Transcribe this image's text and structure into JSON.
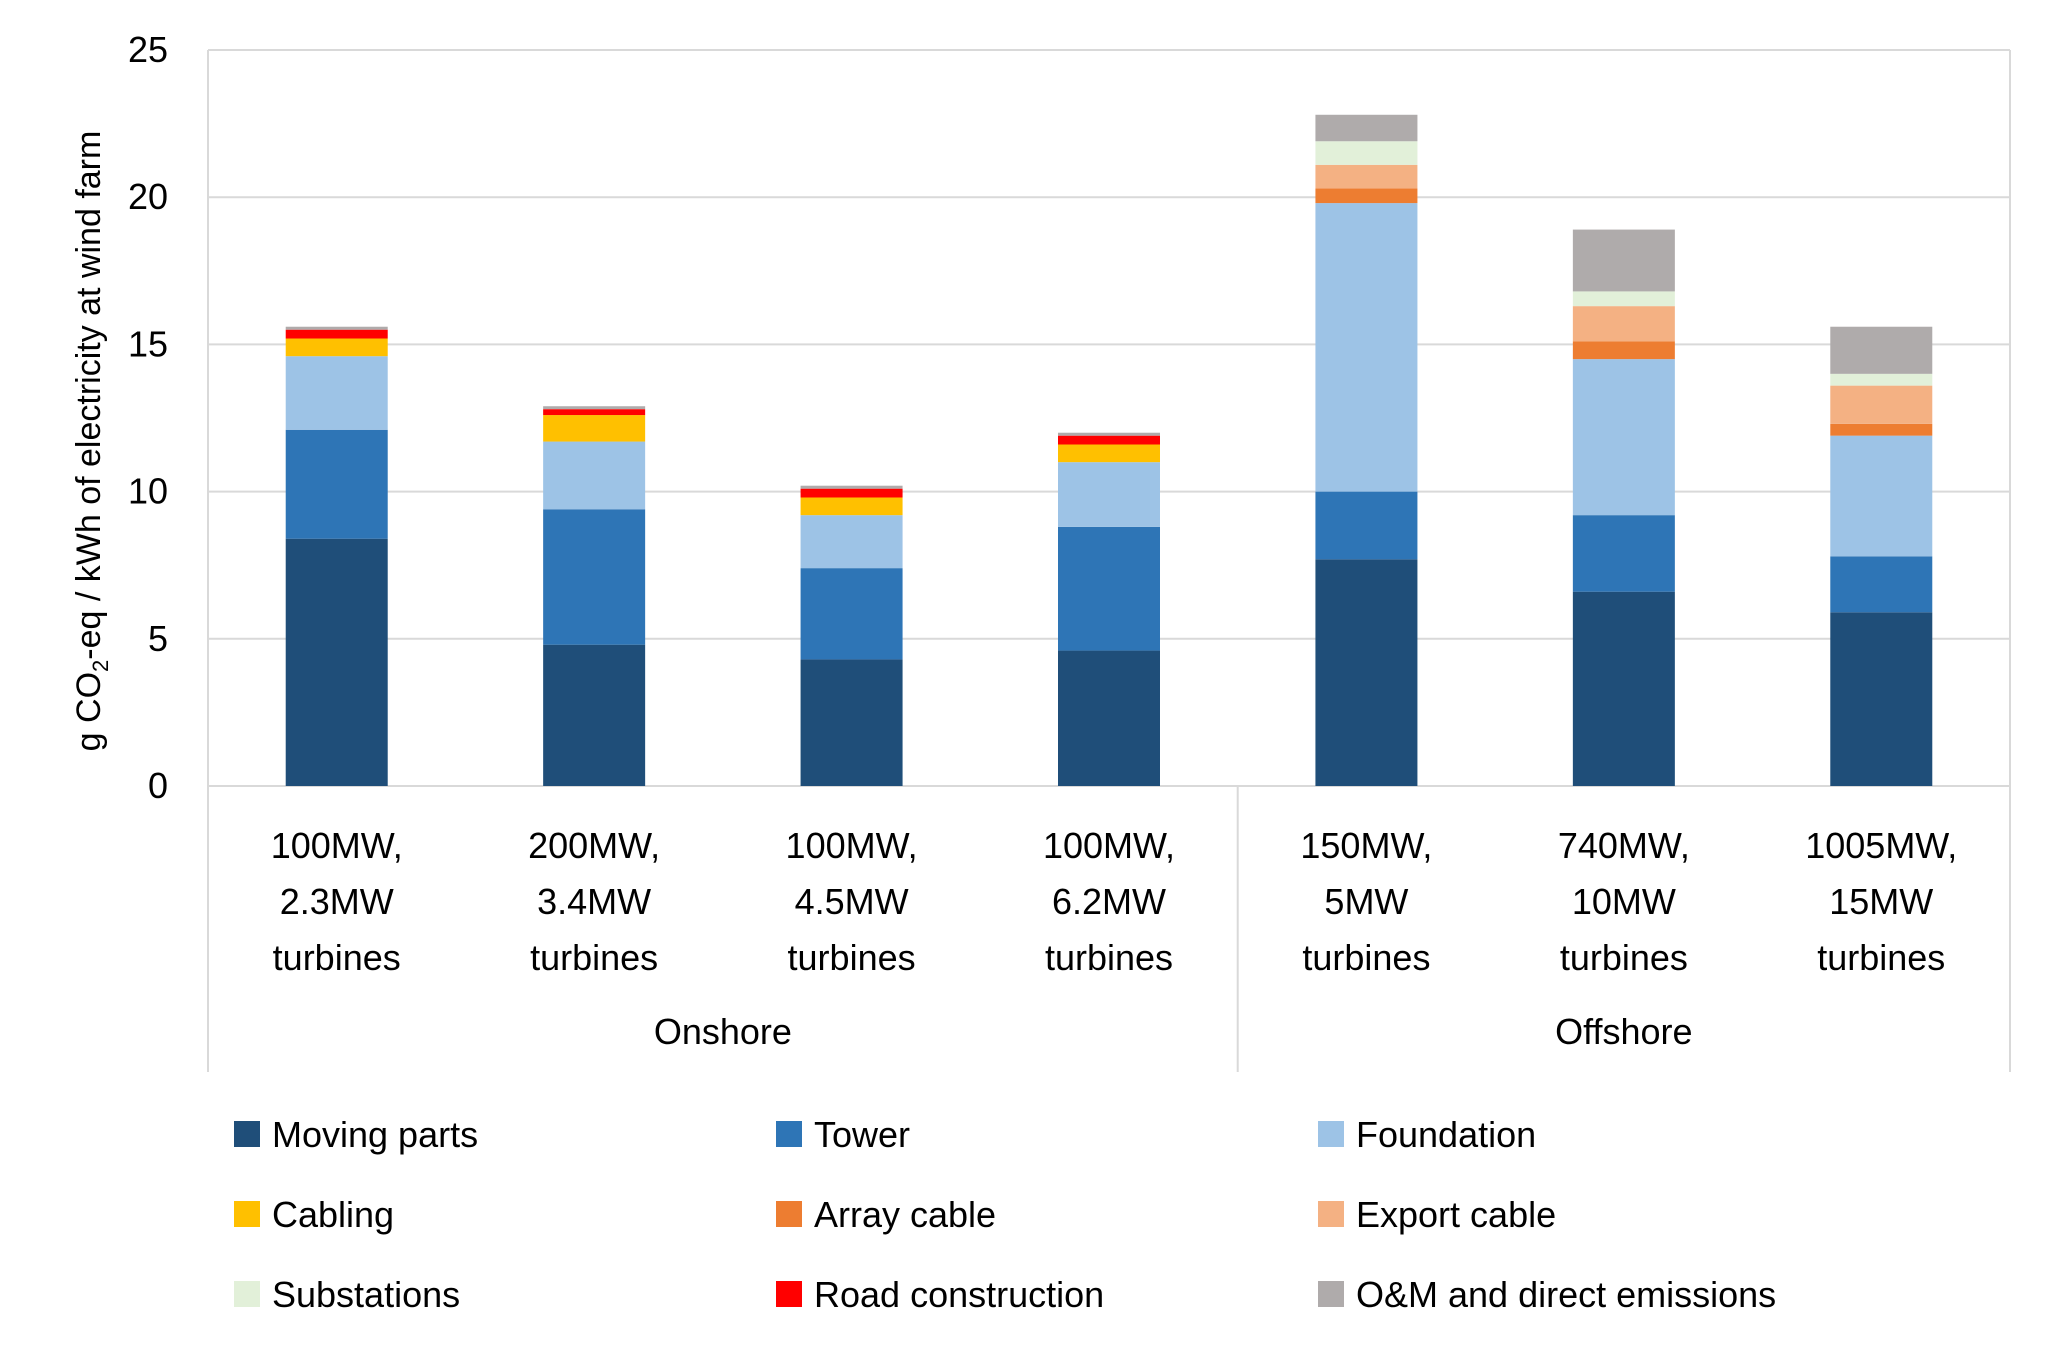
{
  "chart_data": {
    "type": "bar",
    "stacked": true,
    "title": "",
    "xlabel": "",
    "ylabel_parts": {
      "pre": "g CO",
      "sub": "2",
      "post": "-eq / kWh of electricity at wind farm"
    },
    "ylim": [
      0,
      25
    ],
    "yticks": [
      0,
      5,
      10,
      15,
      20,
      25
    ],
    "grid": true,
    "categories": [
      [
        "100MW,",
        "2.3MW",
        "turbines"
      ],
      [
        "200MW,",
        "3.4MW",
        "turbines"
      ],
      [
        "100MW,",
        "4.5MW",
        "turbines"
      ],
      [
        "100MW,",
        "6.2MW",
        "turbines"
      ],
      [
        "150MW,",
        "5MW",
        "turbines"
      ],
      [
        "740MW,",
        "10MW",
        "turbines"
      ],
      [
        "1005MW,",
        "15MW",
        "turbines"
      ]
    ],
    "groups": [
      {
        "label": "Onshore",
        "start": 0,
        "end": 3
      },
      {
        "label": "Offshore",
        "start": 4,
        "end": 6
      }
    ],
    "series": [
      {
        "name": "Moving parts",
        "color": "#1F4E79",
        "values": [
          8.4,
          4.8,
          4.3,
          4.6,
          7.7,
          6.6,
          5.9
        ]
      },
      {
        "name": "Tower",
        "color": "#2E75B6",
        "values": [
          3.7,
          4.6,
          3.1,
          4.2,
          2.3,
          2.6,
          1.9
        ]
      },
      {
        "name": "Foundation",
        "color": "#9DC3E6",
        "values": [
          2.5,
          2.3,
          1.8,
          2.2,
          9.8,
          5.3,
          4.1
        ]
      },
      {
        "name": "Cabling",
        "color": "#FFC000",
        "values": [
          0.6,
          0.9,
          0.6,
          0.6,
          0,
          0,
          0
        ]
      },
      {
        "name": "Array cable",
        "color": "#ED7D31",
        "values": [
          0,
          0,
          0,
          0,
          0.5,
          0.6,
          0.4
        ]
      },
      {
        "name": "Export cable",
        "color": "#F4B183",
        "values": [
          0,
          0,
          0,
          0,
          0.8,
          1.2,
          1.3
        ]
      },
      {
        "name": "Substations",
        "color": "#E2F0D9",
        "values": [
          0,
          0,
          0,
          0,
          0.8,
          0.5,
          0.4
        ]
      },
      {
        "name": "Road construction",
        "color": "#FF0000",
        "values": [
          0.3,
          0.2,
          0.3,
          0.3,
          0,
          0,
          0
        ]
      },
      {
        "name": "O&M and direct emissions",
        "color": "#AFABAB",
        "values": [
          0.1,
          0.1,
          0.1,
          0.1,
          0.9,
          2.1,
          1.6
        ]
      }
    ],
    "legend_position": "bottom"
  }
}
